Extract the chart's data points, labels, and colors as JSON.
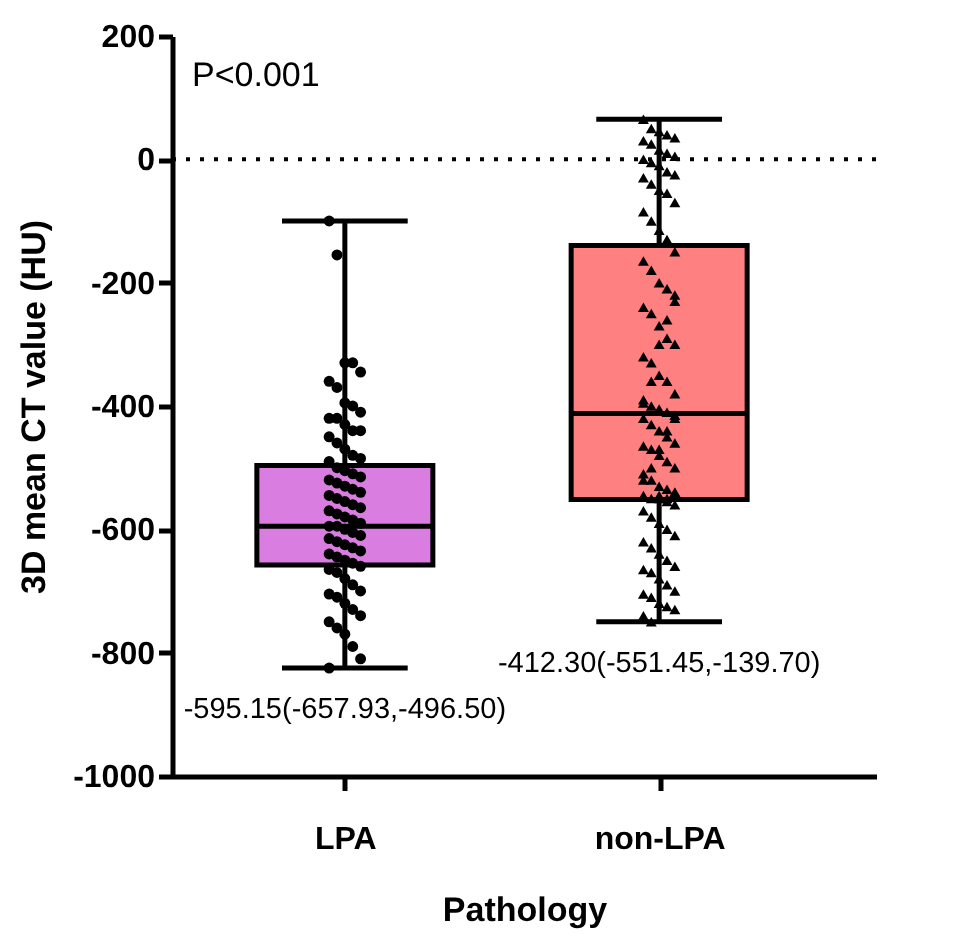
{
  "chart_data": {
    "type": "box",
    "xlabel": "Pathology",
    "ylabel": "3D mean CT value (HU)",
    "categories": [
      "LPA",
      "non-LPA"
    ],
    "ylim": [
      -1000,
      200
    ],
    "yticks": [
      200,
      0,
      -200,
      -400,
      -600,
      -800,
      {
        "value": -1000,
        "label": "-1000"
      }
    ],
    "grid": false,
    "series": [
      {
        "type": "box",
        "colors": [
          "#d97de0",
          "#ff8080"
        ],
        "boxes": [
          {
            "low": -825,
            "q1": -657.93,
            "median": -595.15,
            "q3": -496.5,
            "high": -100
          },
          {
            "low": -750,
            "q1": -551.45,
            "median": -412.3,
            "q3": -139.7,
            "high": 65
          }
        ]
      },
      {
        "type": "scatter",
        "marker": "circle",
        "color": "#000000",
        "x": [
          "LPA",
          "LPA",
          "LPA",
          "LPA",
          "LPA",
          "LPA",
          "LPA",
          "LPA",
          "LPA",
          "LPA",
          "LPA",
          "LPA",
          "LPA",
          "LPA",
          "LPA",
          "LPA",
          "LPA",
          "LPA",
          "LPA",
          "LPA",
          "LPA",
          "LPA",
          "LPA",
          "LPA",
          "LPA",
          "LPA",
          "LPA",
          "LPA",
          "LPA",
          "LPA",
          "LPA",
          "LPA",
          "LPA",
          "LPA",
          "LPA",
          "LPA",
          "LPA",
          "LPA",
          "LPA",
          "LPA",
          "LPA",
          "LPA",
          "LPA",
          "LPA",
          "LPA",
          "LPA",
          "LPA",
          "LPA",
          "LPA",
          "LPA",
          "LPA",
          "LPA",
          "LPA",
          "LPA",
          "LPA",
          "LPA",
          "LPA",
          "LPA",
          "LPA",
          "LPA",
          "LPA",
          "LPA",
          "LPA",
          "LPA",
          "LPA",
          "LPA",
          "LPA",
          "LPA",
          "LPA",
          "LPA",
          "LPA"
        ],
        "values": [
          -100,
          -155,
          -330,
          -330,
          -345,
          -360,
          -370,
          -395,
          -400,
          -410,
          -420,
          -420,
          -430,
          -440,
          -440,
          -450,
          -460,
          -470,
          -480,
          -485,
          -490,
          -500,
          -505,
          -510,
          -515,
          -520,
          -525,
          -530,
          -535,
          -540,
          -545,
          -550,
          -555,
          -560,
          -565,
          -570,
          -575,
          -580,
          -585,
          -590,
          -595,
          -595,
          -600,
          -605,
          -610,
          -615,
          -620,
          -625,
          -630,
          -635,
          -640,
          -645,
          -650,
          -655,
          -660,
          -665,
          -670,
          -680,
          -690,
          -700,
          -705,
          -710,
          -720,
          -730,
          -740,
          -750,
          -760,
          -770,
          -790,
          -810,
          -825
        ]
      },
      {
        "type": "scatter",
        "marker": "triangle",
        "color": "#000000",
        "x": [
          "non-LPA",
          "non-LPA",
          "non-LPA",
          "non-LPA",
          "non-LPA",
          "non-LPA",
          "non-LPA",
          "non-LPA",
          "non-LPA",
          "non-LPA",
          "non-LPA",
          "non-LPA",
          "non-LPA",
          "non-LPA",
          "non-LPA",
          "non-LPA",
          "non-LPA",
          "non-LPA",
          "non-LPA",
          "non-LPA",
          "non-LPA",
          "non-LPA",
          "non-LPA",
          "non-LPA",
          "non-LPA",
          "non-LPA",
          "non-LPA",
          "non-LPA",
          "non-LPA",
          "non-LPA",
          "non-LPA",
          "non-LPA",
          "non-LPA",
          "non-LPA",
          "non-LPA",
          "non-LPA",
          "non-LPA",
          "non-LPA",
          "non-LPA",
          "non-LPA",
          "non-LPA",
          "non-LPA",
          "non-LPA",
          "non-LPA",
          "non-LPA",
          "non-LPA",
          "non-LPA",
          "non-LPA",
          "non-LPA",
          "non-LPA",
          "non-LPA",
          "non-LPA",
          "non-LPA",
          "non-LPA",
          "non-LPA",
          "non-LPA",
          "non-LPA",
          "non-LPA",
          "non-LPA",
          "non-LPA",
          "non-LPA",
          "non-LPA",
          "non-LPA",
          "non-LPA",
          "non-LPA",
          "non-LPA",
          "non-LPA",
          "non-LPA",
          "non-LPA",
          "non-LPA",
          "non-LPA",
          "non-LPA",
          "non-LPA",
          "non-LPA",
          "non-LPA",
          "non-LPA",
          "non-LPA",
          "non-LPA",
          "non-LPA",
          "non-LPA",
          "non-LPA",
          "non-LPA",
          "non-LPA",
          "non-LPA",
          "non-LPA",
          "non-LPA",
          "non-LPA",
          "non-LPA",
          "non-LPA",
          "non-LPA",
          "non-LPA",
          "non-LPA",
          "non-LPA",
          "non-LPA",
          "non-LPA",
          "non-LPA",
          "non-LPA",
          "non-LPA",
          "non-LPA",
          "non-LPA"
        ],
        "values": [
          65,
          50,
          45,
          40,
          35,
          30,
          25,
          15,
          10,
          5,
          0,
          -5,
          -10,
          -20,
          -25,
          -30,
          -40,
          -50,
          -55,
          -70,
          -85,
          -100,
          -115,
          -130,
          -150,
          -165,
          -180,
          -200,
          -210,
          -230,
          -240,
          -250,
          -270,
          -290,
          -300,
          -320,
          -330,
          -350,
          -360,
          -380,
          -390,
          -400,
          -405,
          -410,
          -415,
          -420,
          -430,
          -440,
          -450,
          -460,
          -465,
          -470,
          -480,
          -490,
          -500,
          -510,
          -520,
          -530,
          -535,
          -540,
          -545,
          -550,
          -550,
          -555,
          -560,
          -570,
          -580,
          -590,
          -600,
          -610,
          -620,
          -630,
          -640,
          -650,
          -660,
          -665,
          -670,
          -680,
          -690,
          -700,
          -705,
          -710,
          -720,
          -725,
          -730,
          -740,
          -750,
          -545,
          -550,
          -540,
          -520,
          -500,
          -470,
          -440,
          -420,
          -395,
          -360,
          -300,
          -260,
          -220
        ]
      }
    ],
    "ref_lines": [
      {
        "axis": "y",
        "value": 0,
        "line_style": "dotted"
      }
    ],
    "annotations": [
      "P<0.001",
      "-595.15(-657.93,-496.50)",
      "-412.30(-551.45,-139.70)"
    ]
  }
}
